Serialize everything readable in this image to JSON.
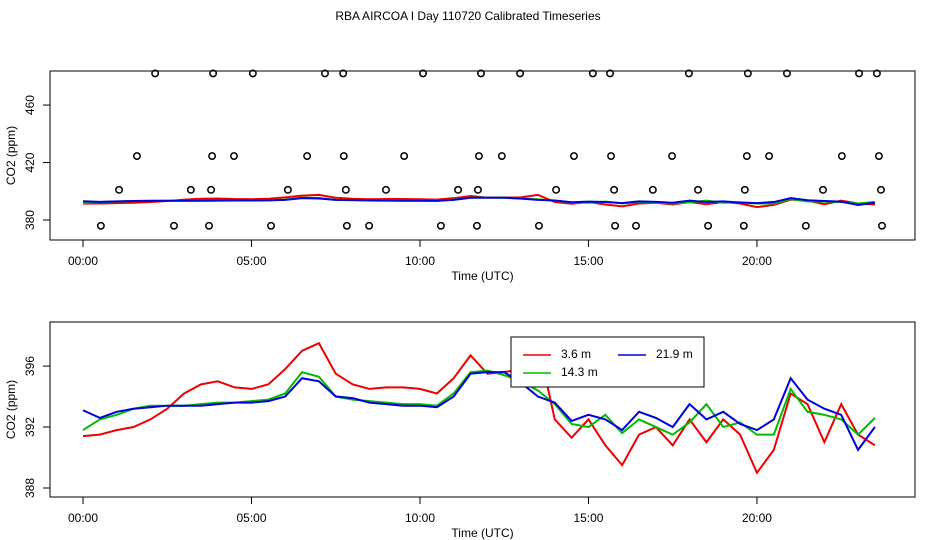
{
  "title": "RBA AIRCOA I  Day 110720  Calibrated Timeseries",
  "chart_data": [
    {
      "type": "line",
      "xlabel": "Time (UTC)",
      "ylabel": "CO2 (ppm)",
      "xlim": [
        -0.98,
        24.69
      ],
      "ylim": [
        366.1,
        483.7
      ],
      "xticks": [
        {
          "value": 0,
          "label": "00:00"
        },
        {
          "value": 5,
          "label": "05:00"
        },
        {
          "value": 10,
          "label": "10:00"
        },
        {
          "value": 15,
          "label": "15:00"
        },
        {
          "value": 20,
          "label": "20:00"
        }
      ],
      "yticks": [
        380,
        420,
        460
      ],
      "x": [
        0,
        0.5,
        1,
        1.5,
        2,
        2.5,
        3,
        3.5,
        4,
        4.5,
        5,
        5.5,
        6,
        6.5,
        7,
        7.5,
        8,
        8.5,
        9,
        9.5,
        10,
        10.5,
        11,
        11.5,
        12,
        12.5,
        13,
        13.5,
        14,
        14.5,
        15,
        15.5,
        16,
        16.5,
        17,
        17.5,
        18,
        18.5,
        19,
        19.5,
        20,
        20.5,
        21,
        21.5,
        22,
        22.5,
        23,
        23.5
      ],
      "series": [
        {
          "color": "#000000",
          "marker": "open-circle",
          "x": [
            2.14,
            3.86,
            5.04,
            7.18,
            7.72,
            10.09,
            11.81,
            12.97,
            15.13,
            15.64,
            17.98,
            19.73,
            20.89,
            23.03,
            23.56,
            1.6,
            3.83,
            4.48,
            6.65,
            7.74,
            9.53,
            11.75,
            12.43,
            14.57,
            15.67,
            17.48,
            19.7,
            20.36,
            22.52,
            23.62,
            1.07,
            3.2,
            3.8,
            6.08,
            7.8,
            8.99,
            11.13,
            11.72,
            14.04,
            15.76,
            16.91,
            18.25,
            19.64,
            21.96,
            23.68,
            0.53,
            2.7,
            3.74,
            5.58,
            7.83,
            8.49,
            10.62,
            11.69,
            13.53,
            15.79,
            16.41,
            18.55,
            19.61,
            21.45,
            23.71
          ],
          "values": [
            482,
            482,
            482,
            482,
            482,
            482,
            482,
            482,
            482,
            482,
            482,
            482,
            482,
            482,
            482,
            424.5,
            424.5,
            424.5,
            424.5,
            424.5,
            424.5,
            424.5,
            424.5,
            424.5,
            424.5,
            424.5,
            424.5,
            424.5,
            424.5,
            424.5,
            401,
            401,
            401,
            401,
            401,
            401,
            401,
            401,
            401,
            401,
            401,
            401,
            401,
            401,
            401,
            376,
            376,
            376,
            376,
            376,
            376,
            376,
            376,
            376,
            376,
            376,
            376,
            376,
            376,
            376
          ]
        },
        {
          "color": "#ee0000",
          "values": [
            391.4,
            391.5,
            391.8,
            392.0,
            392.5,
            393.2,
            394.2,
            394.8,
            395.0,
            394.6,
            394.5,
            394.8,
            395.8,
            397.0,
            397.5,
            395.5,
            394.8,
            394.5,
            394.6,
            394.6,
            394.5,
            394.2,
            395.2,
            396.7,
            395.5,
            395.6,
            395.8,
            397.5,
            392.5,
            391.3,
            392.5,
            390.8,
            389.5,
            391.5,
            392.0,
            390.8,
            392.5,
            391.0,
            392.5,
            391.5,
            389.0,
            390.5,
            394.2,
            393.5,
            391.0,
            393.5,
            391.5,
            390.8
          ]
        },
        {
          "color": "#00bb00",
          "values": [
            391.8,
            392.5,
            392.8,
            393.2,
            393.4,
            393.4,
            393.4,
            393.5,
            393.6,
            393.6,
            393.7,
            393.8,
            394.2,
            395.6,
            395.3,
            394.0,
            393.8,
            393.7,
            393.6,
            393.5,
            393.5,
            393.4,
            394.2,
            395.6,
            395.7,
            395.4,
            395.0,
            394.4,
            393.5,
            392.2,
            392.0,
            392.8,
            391.6,
            392.5,
            392.0,
            391.5,
            392.3,
            393.5,
            392.0,
            392.3,
            391.5,
            391.5,
            394.5,
            393.0,
            392.8,
            392.5,
            391.5,
            392.6
          ]
        },
        {
          "color": "#0000dd",
          "values": [
            393.1,
            392.6,
            393.0,
            393.2,
            393.3,
            393.4,
            393.4,
            393.4,
            393.5,
            393.6,
            393.6,
            393.7,
            394.0,
            395.2,
            395.0,
            394.0,
            393.9,
            393.6,
            393.5,
            393.4,
            393.4,
            393.3,
            394.0,
            395.5,
            395.6,
            395.6,
            394.9,
            394.0,
            393.6,
            392.4,
            392.8,
            392.5,
            391.8,
            393.0,
            392.6,
            392.0,
            393.5,
            392.5,
            393.0,
            392.2,
            391.8,
            392.5,
            395.2,
            393.8,
            393.2,
            392.8,
            390.5,
            392.0
          ]
        }
      ]
    },
    {
      "type": "line",
      "xlabel": "Time (UTC)",
      "ylabel": "CO2 (ppm)",
      "legend": "top",
      "xlim": [
        -0.98,
        24.69
      ],
      "ylim": [
        387.41,
        398.89
      ],
      "xticks": [
        {
          "value": 0,
          "label": "00:00"
        },
        {
          "value": 5,
          "label": "05:00"
        },
        {
          "value": 10,
          "label": "10:00"
        },
        {
          "value": 15,
          "label": "15:00"
        },
        {
          "value": 20,
          "label": "20:00"
        }
      ],
      "yticks": [
        388,
        392,
        396
      ],
      "x": [
        0,
        0.5,
        1,
        1.5,
        2,
        2.5,
        3,
        3.5,
        4,
        4.5,
        5,
        5.5,
        6,
        6.5,
        7,
        7.5,
        8,
        8.5,
        9,
        9.5,
        10,
        10.5,
        11,
        11.5,
        12,
        12.5,
        13,
        13.5,
        14,
        14.5,
        15,
        15.5,
        16,
        16.5,
        17,
        17.5,
        18,
        18.5,
        19,
        19.5,
        20,
        20.5,
        21,
        21.5,
        22,
        22.5,
        23,
        23.5
      ],
      "series": [
        {
          "name": "3.6 m",
          "color": "#ee0000",
          "values": [
            391.4,
            391.5,
            391.8,
            392.0,
            392.5,
            393.2,
            394.2,
            394.8,
            395.0,
            394.6,
            394.5,
            394.8,
            395.8,
            397.0,
            397.5,
            395.5,
            394.8,
            394.5,
            394.6,
            394.6,
            394.5,
            394.2,
            395.2,
            396.7,
            395.5,
            395.6,
            395.8,
            397.5,
            392.5,
            391.3,
            392.5,
            390.8,
            389.5,
            391.5,
            392.0,
            390.8,
            392.5,
            391.0,
            392.5,
            391.5,
            389.0,
            390.5,
            394.2,
            393.5,
            391.0,
            393.5,
            391.5,
            390.8
          ]
        },
        {
          "name": "14.3 m",
          "color": "#00bb00",
          "values": [
            391.8,
            392.5,
            392.8,
            393.2,
            393.4,
            393.4,
            393.4,
            393.5,
            393.6,
            393.6,
            393.7,
            393.8,
            394.2,
            395.6,
            395.3,
            394.0,
            393.8,
            393.7,
            393.6,
            393.5,
            393.5,
            393.4,
            394.2,
            395.6,
            395.7,
            395.4,
            395.0,
            394.4,
            393.5,
            392.2,
            392.0,
            392.8,
            391.6,
            392.5,
            392.0,
            391.5,
            392.3,
            393.5,
            392.0,
            392.3,
            391.5,
            391.5,
            394.5,
            393.0,
            392.8,
            392.5,
            391.5,
            392.6
          ]
        },
        {
          "name": "21.9 m",
          "color": "#0000dd",
          "values": [
            393.1,
            392.6,
            393.0,
            393.2,
            393.3,
            393.4,
            393.4,
            393.4,
            393.5,
            393.6,
            393.6,
            393.7,
            394.0,
            395.2,
            395.0,
            394.0,
            393.9,
            393.6,
            393.5,
            393.4,
            393.4,
            393.3,
            394.0,
            395.5,
            395.6,
            395.6,
            394.9,
            394.0,
            393.6,
            392.4,
            392.8,
            392.5,
            391.8,
            393.0,
            392.6,
            392.0,
            393.5,
            392.5,
            393.0,
            392.2,
            391.8,
            392.5,
            395.2,
            393.8,
            393.2,
            392.8,
            390.5,
            392.0
          ]
        }
      ]
    }
  ]
}
